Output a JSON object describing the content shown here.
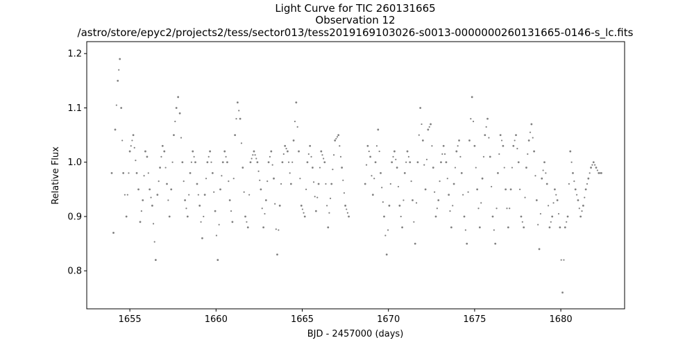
{
  "chart_data": {
    "type": "scatter",
    "title_lines": [
      "Light Curve for TIC 260131665",
      "Observation 12",
      "/astro/store/epyc2/projects2/tess/sector013/tess2019169103026-s0013-0000000260131665-0146-s_lc.fits"
    ],
    "xlabel": "BJD - 2457000 (days)",
    "ylabel": "Relative Flux",
    "xlim": [
      1652.5,
      1683.7
    ],
    "ylim": [
      0.73,
      1.222
    ],
    "xticks": [
      1655,
      1660,
      1665,
      1670,
      1675,
      1680
    ],
    "xtick_labels": [
      "1655",
      "1660",
      "1665",
      "1670",
      "1675",
      "1680"
    ],
    "yticks": [
      0.8,
      0.9,
      1.0,
      1.1,
      1.2
    ],
    "ytick_labels": [
      "0.8",
      "0.9",
      "1.0",
      "1.1",
      "1.2"
    ],
    "grid": false,
    "marker_color": "#808080",
    "series": [
      {
        "x": [
          1653.95,
          1654.05,
          1654.15,
          1654.3,
          1654.42,
          1654.5,
          1654.62,
          1654.8,
          1655.0,
          1655.2,
          1655.4,
          1655.5,
          1655.6,
          1655.75,
          1655.9,
          1656.0,
          1656.15,
          1656.3,
          1656.5,
          1656.6,
          1656.75,
          1656.9,
          1657.0,
          1657.15,
          1657.3,
          1657.4,
          1657.55,
          1657.7,
          1657.8,
          1657.9,
          1658.05,
          1658.2,
          1658.35,
          1658.5,
          1658.65,
          1658.8,
          1658.9,
          1659.05,
          1659.2,
          1659.35,
          1659.5,
          1659.65,
          1659.8,
          1659.95,
          1660.1,
          1660.25,
          1660.4,
          1660.5,
          1660.65,
          1660.8,
          1660.95,
          1661.1,
          1661.25,
          1661.4,
          1661.55,
          1661.7,
          1661.85,
          1662.0,
          1662.2,
          1662.4,
          1662.6,
          1662.75,
          1662.9,
          1663.05,
          1663.2,
          1663.35,
          1663.55,
          1663.7,
          1663.85,
          1664.0,
          1664.15,
          1664.35,
          1664.5,
          1664.65,
          1664.8,
          1664.95,
          1665.15,
          1665.3,
          1665.45,
          1665.6,
          1665.8,
          1665.95,
          1666.1,
          1666.3,
          1666.5,
          1666.7,
          1666.9,
          1667.1,
          1667.3,
          1667.5,
          1667.7
        ],
        "y": [
          0.98,
          0.87,
          1.06,
          1.15,
          1.19,
          1.1,
          0.98,
          0.9,
          1.02,
          1.05,
          0.98,
          0.95,
          0.89,
          0.93,
          1.02,
          1.01,
          0.95,
          0.92,
          0.82,
          0.94,
          0.99,
          1.03,
          1.02,
          0.96,
          0.9,
          0.95,
          1.05,
          1.1,
          1.12,
          1.09,
          1.0,
          0.93,
          0.9,
          0.98,
          1.02,
          1.0,
          0.96,
          0.92,
          0.86,
          0.94,
          1.0,
          1.02,
          0.98,
          0.91,
          0.82,
          0.95,
          1.0,
          1.02,
          1.0,
          0.93,
          0.89,
          1.05,
          1.11,
          1.08,
          0.99,
          0.9,
          0.88,
          1.0,
          1.02,
          1.0,
          0.95,
          0.88,
          0.93,
          1.0,
          1.02,
          0.97,
          0.83,
          0.92,
          1.0,
          1.03,
          1.02,
          0.96,
          1.04,
          1.11,
          1.02,
          0.92,
          0.9,
          1.0,
          1.03,
          0.99,
          0.91,
          0.96,
          1.02,
          1.0,
          0.88,
          0.96,
          1.04,
          1.05,
          0.99,
          0.92,
          0.9
        ]
      },
      {
        "x": [
          1668.65,
          1668.8,
          1668.95,
          1669.1,
          1669.25,
          1669.4,
          1669.55,
          1669.75,
          1669.9,
          1670.05,
          1670.2,
          1670.35,
          1670.5,
          1670.65,
          1670.8,
          1670.95,
          1671.1,
          1671.25,
          1671.4,
          1671.55,
          1671.7,
          1671.85,
          1672.0,
          1672.15,
          1672.3,
          1672.45,
          1672.6,
          1672.75,
          1672.9,
          1673.05,
          1673.2,
          1673.35,
          1673.5,
          1673.65,
          1673.8,
          1673.95,
          1674.1,
          1674.25,
          1674.4,
          1674.55,
          1674.7,
          1674.85,
          1675.0,
          1675.15,
          1675.3,
          1675.45,
          1675.6,
          1675.75,
          1675.9,
          1676.05,
          1676.2,
          1676.35,
          1676.5,
          1676.65,
          1676.8,
          1676.95,
          1677.1,
          1677.25,
          1677.4,
          1677.55,
          1677.7,
          1677.85,
          1678.0,
          1678.15,
          1678.3,
          1678.45,
          1678.6,
          1678.75,
          1678.9,
          1679.05,
          1679.2,
          1679.35,
          1679.5,
          1679.65,
          1679.8,
          1679.95,
          1680.1,
          1680.25,
          1680.4,
          1680.55,
          1680.7,
          1680.85,
          1681.0,
          1681.15,
          1681.3,
          1681.45,
          1681.6,
          1681.75,
          1681.9,
          1682.05,
          1682.2,
          1682.35
        ],
        "y": [
          0.96,
          1.03,
          1.01,
          0.94,
          1.0,
          1.06,
          0.98,
          0.9,
          0.83,
          0.92,
          1.0,
          1.02,
          0.99,
          0.92,
          0.88,
          0.98,
          1.02,
          1.0,
          0.93,
          0.85,
          1.0,
          1.1,
          1.04,
          0.95,
          1.06,
          1.07,
          0.99,
          0.9,
          0.93,
          1.0,
          1.03,
          1.0,
          0.94,
          0.88,
          0.96,
          1.02,
          1.04,
          0.98,
          0.9,
          0.85,
          1.04,
          1.12,
          1.03,
          0.95,
          0.88,
          0.97,
          1.05,
          1.08,
          1.01,
          0.9,
          0.85,
          0.98,
          1.05,
          1.03,
          0.95,
          0.88,
          0.95,
          1.03,
          1.05,
          1.0,
          0.9,
          0.88,
          0.99,
          1.04,
          1.07,
          1.02,
          0.93,
          0.84,
          0.97,
          1.0,
          0.96,
          0.88,
          0.9,
          0.95,
          0.93,
          0.88,
          0.76,
          0.88,
          0.9,
          1.02,
          0.98,
          0.95,
          0.93,
          0.9,
          0.92,
          0.95,
          0.97,
          0.99,
          1.0,
          0.99,
          0.98,
          0.98
        ]
      }
    ]
  }
}
